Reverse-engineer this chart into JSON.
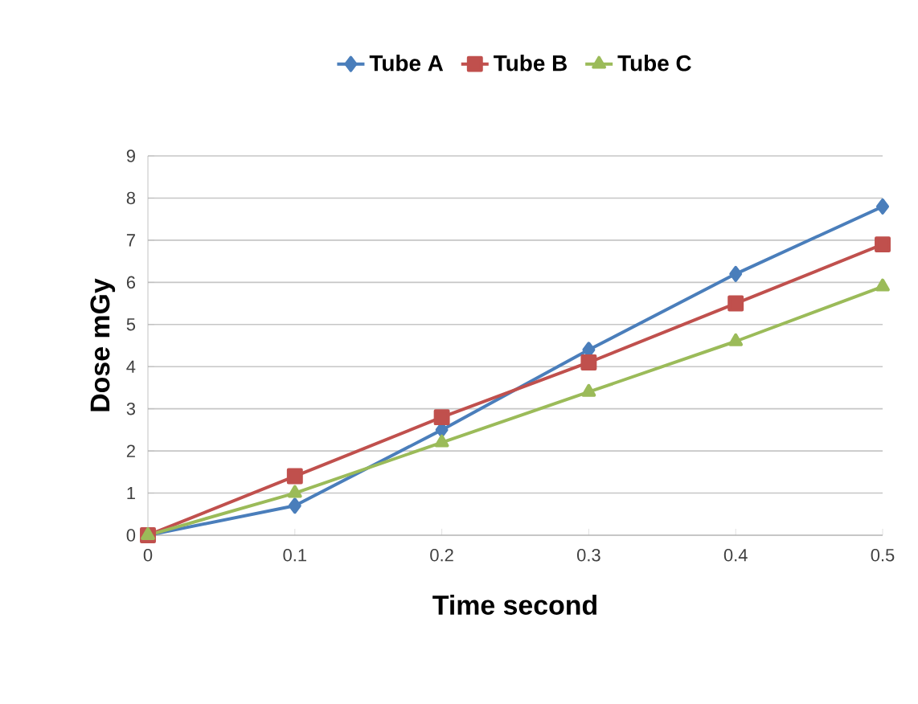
{
  "chart_data": {
    "type": "line",
    "xlabel": "Time second",
    "ylabel": "Dose mGy",
    "x": [
      0,
      0.1,
      0.2,
      0.3,
      0.4,
      0.5
    ],
    "series": [
      {
        "name": "Tube A",
        "color": "#4a7ebb",
        "marker": "diamond",
        "values": [
          0,
          0.7,
          2.5,
          4.4,
          6.2,
          7.8
        ]
      },
      {
        "name": "Tube B",
        "color": "#c0504d",
        "marker": "square",
        "values": [
          0,
          1.4,
          2.8,
          4.1,
          5.5,
          6.9
        ]
      },
      {
        "name": "Tube C",
        "color": "#9bbb59",
        "marker": "triangle",
        "values": [
          0,
          1.0,
          2.2,
          3.4,
          4.6,
          5.9
        ]
      }
    ],
    "xlim": [
      0,
      0.5
    ],
    "xticks": [
      0,
      0.1,
      0.2,
      0.3,
      0.4,
      0.5
    ],
    "ylim": [
      0,
      9
    ],
    "yticks": [
      0,
      1,
      2,
      3,
      4,
      5,
      6,
      7,
      8,
      9
    ],
    "grid": "y",
    "legend": "top"
  }
}
